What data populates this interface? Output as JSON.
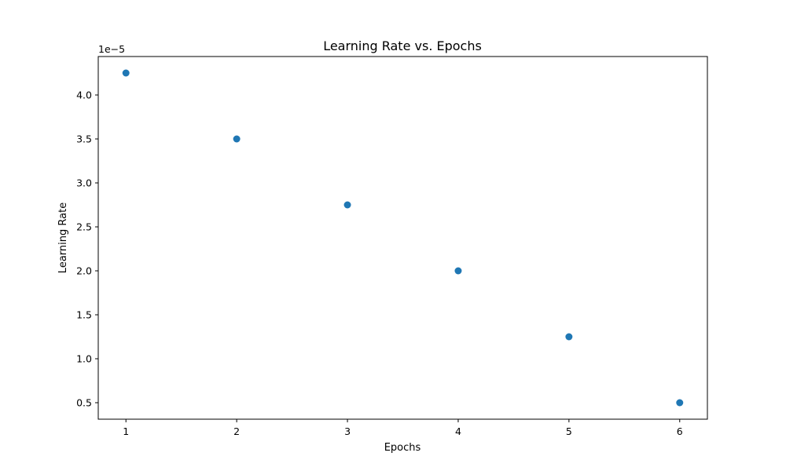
{
  "chart_data": {
    "type": "scatter",
    "title": "Learning Rate vs. Epochs",
    "xlabel": "Epochs",
    "ylabel": "Learning Rate",
    "y_offset_label": "1e−5",
    "x": [
      1,
      2,
      3,
      4,
      5,
      6
    ],
    "y": [
      4.25e-05,
      3.5e-05,
      2.75e-05,
      2e-05,
      1.25e-05,
      5e-06
    ],
    "xlim": [
      0.75,
      6.25
    ],
    "ylim": [
      3.125e-06,
      4.4375e-05
    ],
    "x_ticks": [
      1,
      2,
      3,
      4,
      5,
      6
    ],
    "x_tick_labels": [
      "1",
      "2",
      "3",
      "4",
      "5",
      "6"
    ],
    "y_ticks": [
      5e-06,
      1e-05,
      1.5e-05,
      2e-05,
      2.5e-05,
      3e-05,
      3.5e-05,
      4e-05
    ],
    "y_tick_labels": [
      "0.5",
      "1.0",
      "1.5",
      "2.0",
      "2.5",
      "3.0",
      "3.5",
      "4.0"
    ],
    "grid": false,
    "marker_color": "#1f77b4"
  }
}
